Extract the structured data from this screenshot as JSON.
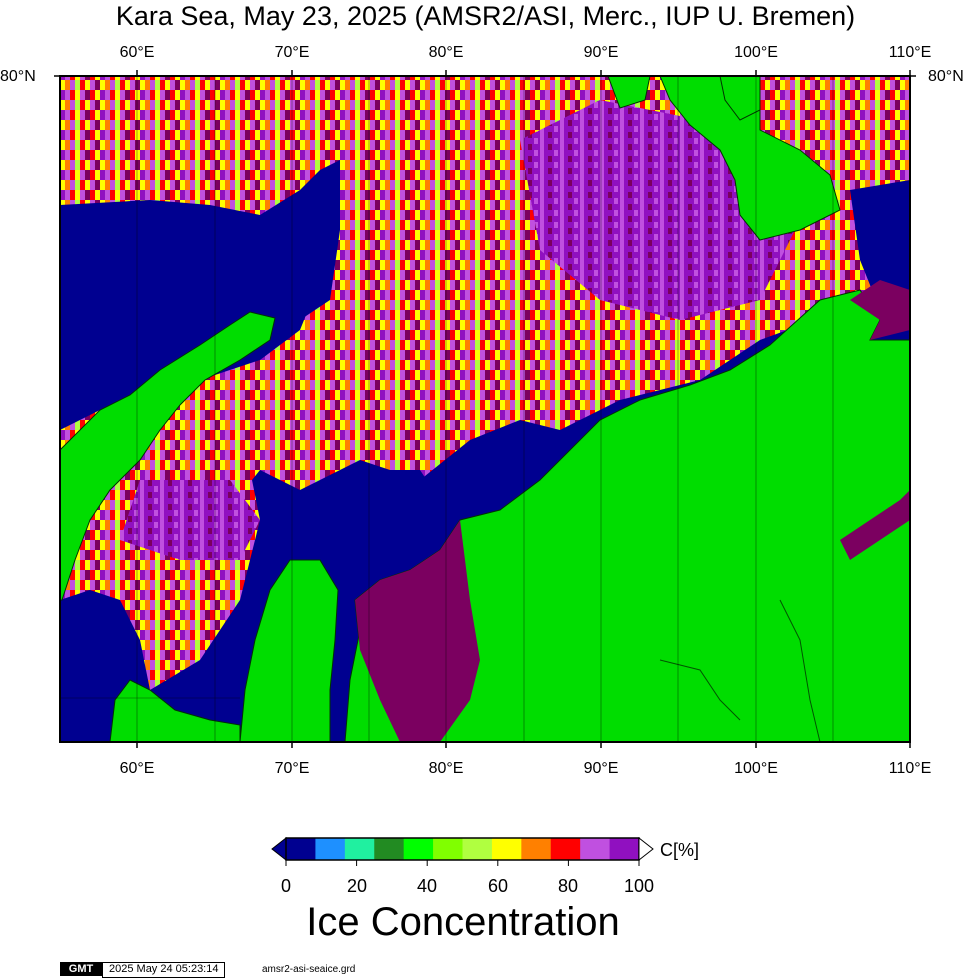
{
  "title": "Kara Sea, May 23, 2025 (AMSR2/ASI, Merc., IUP U. Bremen)",
  "map": {
    "lon_ticks": [
      "60°E",
      "70°E",
      "80°E",
      "90°E",
      "100°E",
      "110°E"
    ],
    "lat_label_left": "80°N",
    "lat_label_right": "80°N",
    "land_color": "#00dd00",
    "open_water_color": "#000090"
  },
  "colorbar": {
    "title": "Ice Concentration",
    "unit": "C[%]",
    "ticks": [
      "0",
      "20",
      "40",
      "60",
      "80",
      "100"
    ],
    "colors": [
      "#000090",
      "#1e90ff",
      "#20f0a0",
      "#228b22",
      "#00ff00",
      "#80ff00",
      "#b0ff40",
      "#ffff00",
      "#ff8000",
      "#ff0000",
      "#c050e0",
      "#9010c0",
      "#7b0060"
    ]
  },
  "footer": {
    "logo": "GMT",
    "timestamp": "2025 May 24 05:23:14",
    "source": "amsr2-asi-seaice.grd"
  }
}
